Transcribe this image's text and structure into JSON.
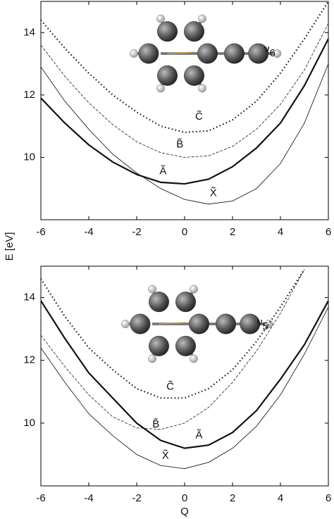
{
  "chart_data": [
    {
      "type": "line",
      "y_label": "E [eV]",
      "mode_label": "ν",
      "mode_subscript": "6",
      "x": [
        -6,
        -5,
        -4,
        -3,
        -2,
        -1,
        0,
        1,
        2,
        3,
        4,
        5,
        6
      ],
      "xlim": [
        -6,
        6
      ],
      "xticks": [
        -6,
        -4,
        -2,
        0,
        2,
        4,
        6
      ],
      "ylim": [
        8,
        15
      ],
      "yticks": [
        10,
        12,
        14
      ],
      "series": [
        {
          "name": "X̃",
          "color": "#222222",
          "dash": "solid",
          "linewidth": 0.9,
          "values": [
            12.9,
            11.8,
            10.9,
            10.1,
            9.5,
            9.0,
            8.65,
            8.5,
            8.6,
            9.0,
            9.8,
            11.1,
            13.0
          ]
        },
        {
          "name": "Ã",
          "color": "#111111",
          "dash": "solid",
          "linewidth": 2.2,
          "values": [
            11.9,
            11.1,
            10.4,
            9.85,
            9.45,
            9.2,
            9.15,
            9.3,
            9.7,
            10.3,
            11.1,
            12.3,
            13.8
          ]
        },
        {
          "name": "B̃",
          "color": "#333333",
          "dash": "dashed",
          "linewidth": 0.9,
          "values": [
            13.6,
            12.6,
            11.75,
            11.05,
            10.5,
            10.15,
            10.0,
            10.05,
            10.35,
            10.9,
            11.7,
            12.8,
            14.3
          ]
        },
        {
          "name": "C̃",
          "color": "#111111",
          "dash": "dotted",
          "linewidth": 2.2,
          "values": [
            14.4,
            13.5,
            12.7,
            12.0,
            11.45,
            11.0,
            10.8,
            10.85,
            11.2,
            11.8,
            12.7,
            13.8,
            15.0
          ]
        }
      ]
    },
    {
      "type": "line",
      "x_label": "Q",
      "mode_label": "ν",
      "mode_subscript": "5",
      "x": [
        -6,
        -5,
        -4,
        -3,
        -2,
        -1,
        0,
        1,
        2,
        3,
        4,
        5,
        6
      ],
      "xlim": [
        -6,
        6
      ],
      "xticks": [
        -6,
        -4,
        -2,
        0,
        2,
        4,
        6
      ],
      "ylim": [
        8,
        15
      ],
      "yticks": [
        10,
        12,
        14
      ],
      "series": [
        {
          "name": "X̃",
          "color": "#222222",
          "dash": "solid",
          "linewidth": 0.9,
          "values": [
            12.4,
            11.3,
            10.3,
            9.6,
            9.0,
            8.65,
            8.55,
            8.75,
            9.2,
            9.9,
            10.9,
            12.2,
            13.7
          ]
        },
        {
          "name": "Ã",
          "color": "#111111",
          "dash": "solid",
          "linewidth": 2.2,
          "values": [
            13.9,
            12.7,
            11.6,
            10.8,
            10.0,
            9.45,
            9.2,
            9.3,
            9.7,
            10.4,
            11.4,
            12.5,
            13.9
          ]
        },
        {
          "name": "B̃",
          "color": "#333333",
          "dash": "dashed",
          "linewidth": 0.9,
          "values": [
            12.8,
            11.8,
            10.9,
            10.2,
            9.85,
            9.8,
            10.0,
            10.5,
            11.3,
            12.3,
            13.5,
            14.9,
            null
          ]
        },
        {
          "name": "C̃",
          "color": "#111111",
          "dash": "dotted",
          "linewidth": 2.2,
          "values": [
            14.6,
            13.4,
            12.4,
            11.7,
            11.1,
            10.8,
            10.8,
            11.1,
            11.7,
            12.6,
            13.7,
            14.9,
            null
          ]
        }
      ]
    }
  ]
}
